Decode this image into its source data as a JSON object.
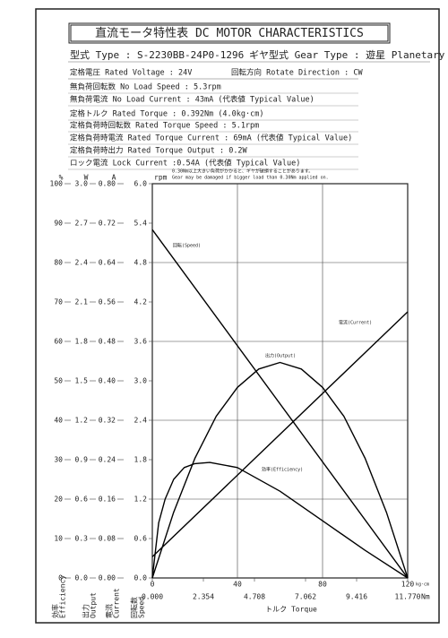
{
  "header": {
    "title": "直流モータ特性表 DC MOTOR CHARACTERISTICS",
    "specs": [
      [
        "型式 Type : S-2230BB-24P0-1296",
        "ギヤ型式 Gear Type : 遊星  Planetary Gear"
      ],
      [
        "定格電圧 Rated Voltage : 24V",
        "回転方向 Rotate Direction : CW"
      ],
      [
        "無負荷回転数 No Load Speed : 5.3rpm"
      ],
      [
        "無負荷電流 No Load Current : 43mA (代表値 Typical Value)"
      ],
      [
        "定格トルク Rated Torque : 0.392Nm (4.0kg·cm)"
      ],
      [
        "定格負荷時回転数 Rated Torque Speed : 5.1rpm"
      ],
      [
        "定格負荷時電流 Rated Torque Current : 69mA (代表値 Typical Value)"
      ],
      [
        "定格負荷時出力 Rated Torque Output : 0.2W"
      ],
      [
        "ロック電流 Lock Current :0.54A (代表値 Typical Value)"
      ]
    ],
    "notes": [
      "0.30Nm以上大きい負荷がかかると、ギヤが破損することがあります。",
      "Gear may be damaged if bigger load than 0.30Nm applied on."
    ]
  },
  "chart_data": {
    "type": "line",
    "xlabel": "トルク Torque",
    "xunit": "kg·cm",
    "xlim": [
      0,
      120
    ],
    "xticks": [
      0,
      40,
      80,
      120
    ],
    "grid": true,
    "ygrid_every": 2,
    "x2unit": "Nm",
    "x2lim": [
      0,
      11.77
    ],
    "x2ticks": [
      {
        "value": 0,
        "label": "0.000"
      },
      2.354,
      4.708,
      7.062,
      9.416,
      {
        "value": 11.77,
        "label": "11.770"
      }
    ],
    "axes": [
      {
        "unit": "%",
        "name_jp": "効率",
        "name_en": "Efficiency",
        "lim": [
          0,
          100
        ],
        "ticks": [
          0,
          10,
          20,
          30,
          40,
          50,
          60,
          70,
          80,
          90,
          100
        ]
      },
      {
        "unit": "W",
        "name_jp": "出力",
        "name_en": "Output",
        "lim": [
          0,
          3
        ],
        "ticks": [
          {
            "value": 0,
            "label": "0.0"
          },
          0.3,
          0.6,
          0.9,
          1.2,
          1.5,
          1.8,
          2.1,
          2.4,
          2.7,
          {
            "value": 3,
            "label": "3.0"
          }
        ]
      },
      {
        "unit": "A",
        "name_jp": "電流",
        "name_en": "Current",
        "lim": [
          0,
          0.8
        ],
        "ticks": [
          {
            "value": 0,
            "label": "0.00"
          },
          0.08,
          0.16,
          0.24,
          0.32,
          {
            "value": 0.4,
            "label": "0.40"
          },
          0.48,
          0.56,
          0.64,
          0.72,
          {
            "value": 0.8,
            "label": "0.80"
          }
        ]
      },
      {
        "unit": "rpm",
        "name_jp": "回転数",
        "name_en": "Speed",
        "lim": [
          0,
          6
        ],
        "ticks": [
          {
            "value": 0,
            "label": "0.0"
          },
          0.6,
          {
            "value": 1.2,
            "label": "1.2"
          },
          1.8,
          2.4,
          {
            "value": 3,
            "label": "3.0"
          },
          3.6,
          4.2,
          4.8,
          5.4,
          {
            "value": 6,
            "label": "6.0"
          }
        ]
      }
    ],
    "series": [
      {
        "name": "回転(Speed)",
        "axis": 3,
        "color": "#000000",
        "x": [
          0,
          120
        ],
        "values": [
          5.3,
          0
        ]
      },
      {
        "name": "電流(Current)",
        "axis": 2,
        "color": "#000000",
        "x": [
          0,
          120
        ],
        "values": [
          0.043,
          0.54
        ]
      },
      {
        "name": "出力(Output)",
        "axis": 1,
        "color": "#000000",
        "x": [
          0,
          10,
          20,
          30,
          40,
          50,
          60,
          70,
          80,
          90,
          100,
          110,
          120
        ],
        "values": [
          0,
          0.5,
          0.91,
          1.23,
          1.45,
          1.59,
          1.64,
          1.59,
          1.45,
          1.23,
          0.91,
          0.5,
          0
        ]
      },
      {
        "name": "効率(Efficiency)",
        "axis": 0,
        "color": "#000000",
        "x": [
          0,
          3,
          6,
          10,
          15,
          20,
          27,
          40,
          60,
          80,
          100,
          120
        ],
        "values": [
          0,
          14,
          20,
          25,
          28,
          29,
          29.3,
          28,
          22,
          14.5,
          7,
          0
        ]
      }
    ]
  }
}
